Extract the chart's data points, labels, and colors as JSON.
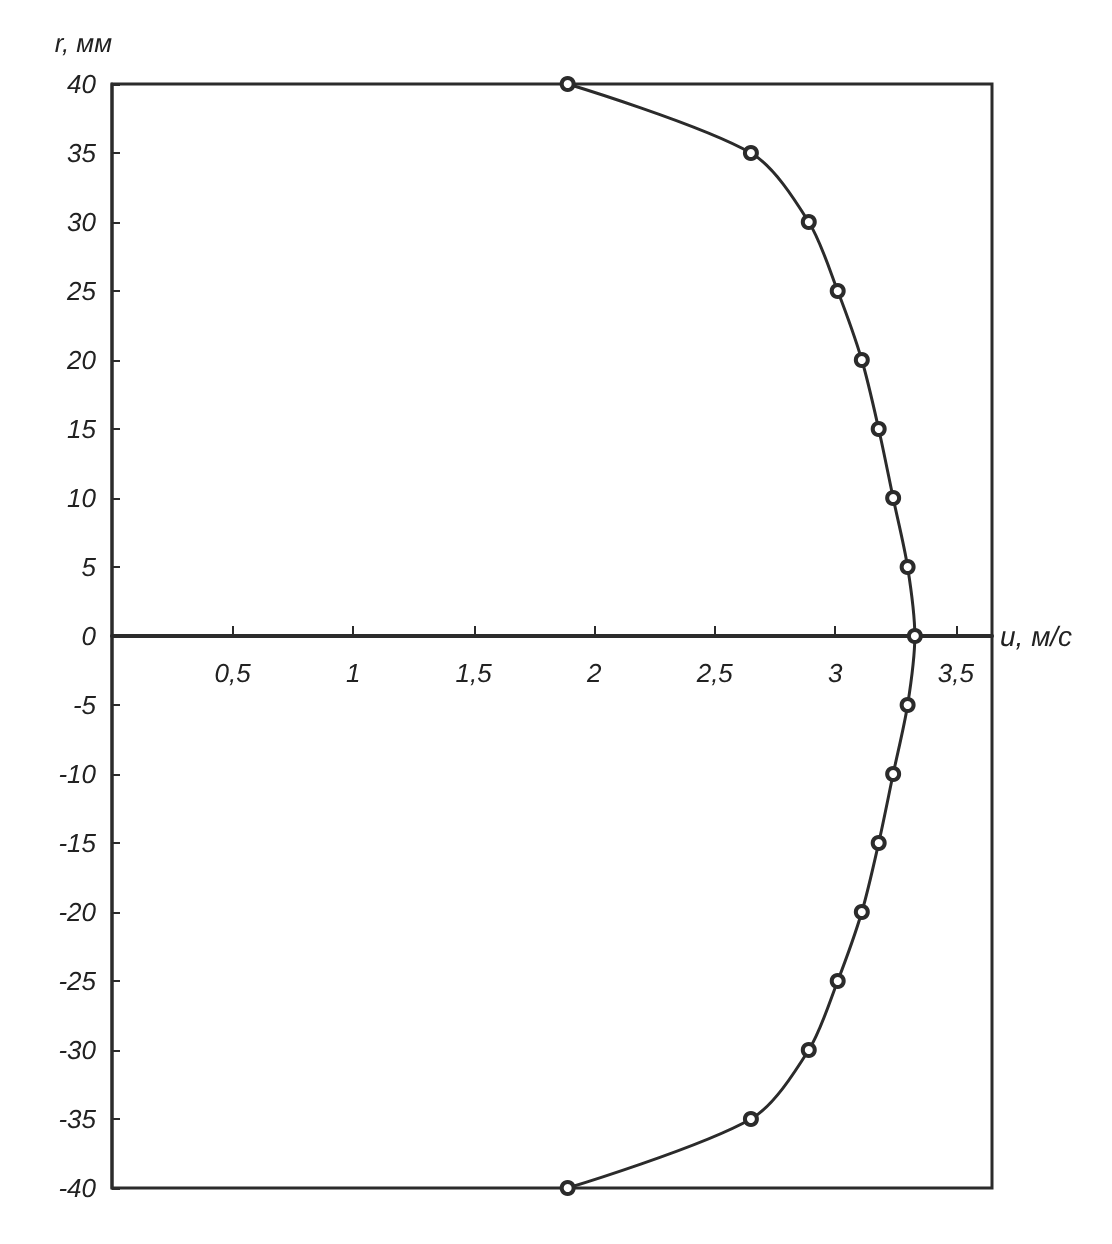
{
  "chart_data": {
    "type": "line",
    "xlabel": "u, м/с",
    "ylabel": "r, мм",
    "x": [
      1.89,
      2.65,
      2.89,
      3.01,
      3.11,
      3.18,
      3.24,
      3.3,
      3.33,
      3.3,
      3.24,
      3.18,
      3.11,
      3.01,
      2.89,
      2.65,
      1.89
    ],
    "series": [
      {
        "color": "#2b2b2b",
        "values": [
          40,
          35,
          30,
          25,
          20,
          15,
          10,
          5,
          0,
          -5,
          -10,
          -15,
          -20,
          -25,
          -30,
          -35,
          -40
        ]
      }
    ],
    "xlim": [
      0,
      3.65
    ],
    "xticks": [
      {
        "value": 0.5,
        "label": "0,5"
      },
      1,
      {
        "value": 1.5,
        "label": "1,5"
      },
      2,
      {
        "value": 2.5,
        "label": "2,5"
      },
      3,
      {
        "value": 3.5,
        "label": "3,5"
      }
    ],
    "ylim": [
      -40,
      40
    ],
    "yticks": [
      -40,
      -35,
      -30,
      -25,
      -20,
      -15,
      -10,
      -5,
      0,
      5,
      10,
      15,
      20,
      25,
      30,
      35,
      40
    ],
    "marker": "circle",
    "line_style": "solid"
  }
}
